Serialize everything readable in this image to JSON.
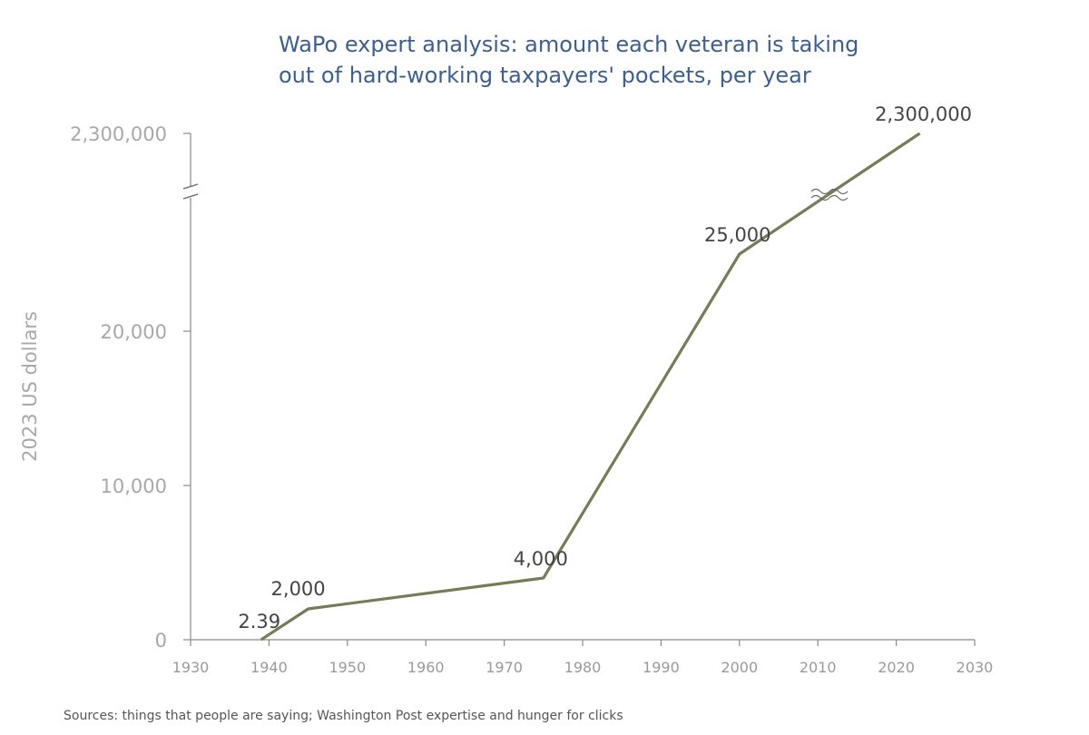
{
  "chart_data": {
    "type": "line",
    "title_lines": [
      "WaPo expert analysis: amount each veteran is taking",
      "out of hard-working taxpayers' pockets, per year"
    ],
    "ylabel": "2023 US dollars",
    "xlabel": "",
    "source": "Sources: things that people are saying; Washington Post expertise and hunger for clicks",
    "x_ticks": [
      "1930",
      "1940",
      "1950",
      "1960",
      "1970",
      "1980",
      "1990",
      "2000",
      "2010",
      "2020",
      "2030"
    ],
    "xlim": [
      1930,
      2030
    ],
    "y_ticks": [
      {
        "label": "0",
        "value": 0
      },
      {
        "label": "10,000",
        "value": 10000
      },
      {
        "label": "20,000",
        "value": 20000
      },
      {
        "label": "2,300,000",
        "value": 2300000
      }
    ],
    "y_axis_break": true,
    "series": [
      {
        "color": "#767c55",
        "points": [
          {
            "x": 1939,
            "y": 2.39,
            "label": "2.39"
          },
          {
            "x": 1945,
            "y": 2000,
            "label": "2,000"
          },
          {
            "x": 1975,
            "y": 4000,
            "label": "4,000"
          },
          {
            "x": 2000,
            "y": 25000,
            "label": "25,000"
          },
          {
            "x": 2023,
            "y": 2300000,
            "label": "2,300,000"
          }
        ]
      }
    ],
    "grid": false
  }
}
